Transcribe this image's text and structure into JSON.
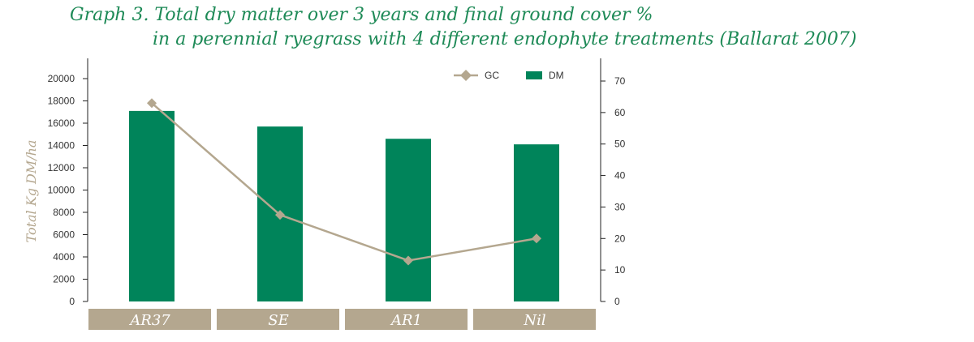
{
  "chart_data": {
    "type": "bar",
    "title": "Graph 3. Total dry matter over 3 years and final ground cover %",
    "subtitle": "in a perennial ryegrass with 4 different endophyte treatments (Ballarat 2007)",
    "categories": [
      "AR37",
      "SE",
      "AR1",
      "Nil"
    ],
    "ylabel": "Total Kg DM/ha",
    "ylim": [
      0,
      20000
    ],
    "y_ticks": [
      "0",
      "2000",
      "4000",
      "6000",
      "8000",
      "10000",
      "12000",
      "14000",
      "16000",
      "18000",
      "20000"
    ],
    "y2lim": [
      0,
      70
    ],
    "y2_ticks": [
      "0",
      "10",
      "20",
      "30",
      "40",
      "50",
      "60",
      "70"
    ],
    "legend_position": "top-right",
    "grid": false,
    "series": [
      {
        "name": "GC",
        "type": "line",
        "axis": "right",
        "values": [
          63,
          27.5,
          13,
          20
        ],
        "color": "#b4a78f",
        "marker": "diamond"
      },
      {
        "name": "DM",
        "type": "bar",
        "axis": "left",
        "values": [
          17100,
          15700,
          14600,
          14100
        ],
        "color": "#00845a"
      }
    ],
    "category_band_color": "#b4a78f"
  }
}
